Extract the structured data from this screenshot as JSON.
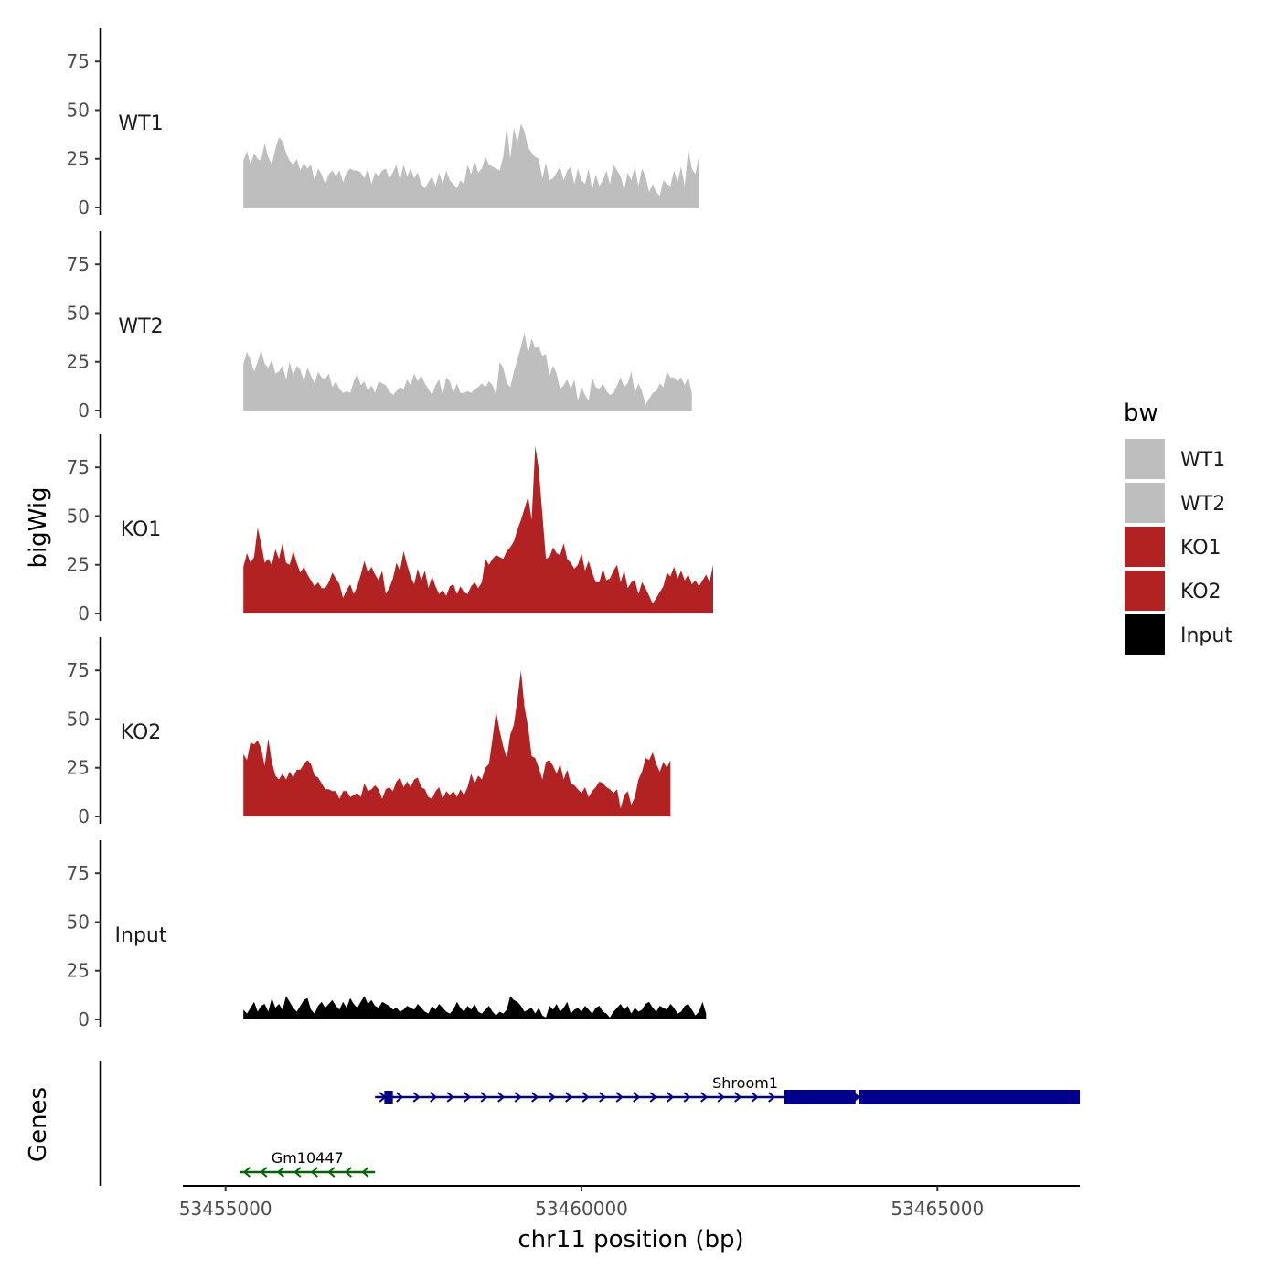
{
  "chart_data": {
    "type": "area",
    "ylabel": "bigWig",
    "genes_ylabel": "Genes",
    "xlabel": "chr11 position (bp)",
    "chromosome": "chr11",
    "xlim": [
      53454400,
      53467000
    ],
    "ylim": [
      0,
      92
    ],
    "x_ticks": [
      53455000,
      53460000,
      53465000
    ],
    "x_tick_labels": [
      "53455000",
      "53460000",
      "53465000"
    ],
    "y_ticks": [
      0,
      25,
      50,
      75
    ],
    "y_tick_labels": [
      "0",
      "25",
      "50",
      "75"
    ],
    "x_start": 53455250,
    "x_step": 50,
    "series": [
      {
        "name": "WT1",
        "color": "#bebebe",
        "values": [
          24,
          29,
          22,
          28,
          25,
          24,
          33,
          26,
          22,
          30,
          36,
          34,
          28,
          24,
          22,
          25,
          19,
          23,
          20,
          22,
          14,
          20,
          17,
          12,
          17,
          19,
          16,
          19,
          13,
          18,
          20,
          19,
          19,
          18,
          15,
          20,
          12,
          18,
          16,
          19,
          20,
          15,
          18,
          22,
          14,
          22,
          16,
          20,
          15,
          18,
          12,
          10,
          13,
          16,
          11,
          18,
          12,
          19,
          14,
          12,
          10,
          14,
          12,
          22,
          17,
          24,
          18,
          20,
          26,
          22,
          21,
          20,
          19,
          26,
          42,
          25,
          41,
          33,
          43,
          39,
          31,
          28,
          26,
          25,
          15,
          23,
          14,
          15,
          18,
          21,
          14,
          19,
          21,
          12,
          20,
          14,
          12,
          20,
          9,
          17,
          11,
          14,
          19,
          12,
          22,
          19,
          16,
          9,
          18,
          14,
          21,
          11,
          20,
          16,
          8,
          12,
          8,
          6,
          14,
          12,
          11,
          19,
          13,
          21,
          11,
          30,
          20,
          17,
          27
        ]
      },
      {
        "name": "WT2",
        "color": "#bebebe",
        "values": [
          24,
          30,
          26,
          20,
          25,
          31,
          24,
          22,
          26,
          19,
          20,
          23,
          16,
          25,
          18,
          23,
          21,
          15,
          22,
          18,
          14,
          20,
          17,
          16,
          19,
          12,
          15,
          11,
          9,
          10,
          9,
          15,
          19,
          13,
          15,
          10,
          13,
          9,
          15,
          14,
          13,
          10,
          8,
          10,
          12,
          11,
          16,
          13,
          19,
          15,
          18,
          14,
          11,
          8,
          13,
          16,
          8,
          17,
          15,
          9,
          14,
          9,
          9,
          10,
          9,
          11,
          12,
          14,
          12,
          15,
          13,
          8,
          25,
          22,
          14,
          12,
          20,
          26,
          33,
          40,
          29,
          37,
          32,
          33,
          28,
          29,
          18,
          23,
          19,
          11,
          13,
          16,
          11,
          16,
          5,
          12,
          8,
          5,
          17,
          12,
          11,
          14,
          10,
          8,
          9,
          13,
          17,
          12,
          14,
          20,
          9,
          14,
          10,
          3,
          6,
          9,
          10,
          14,
          12,
          20,
          17,
          17,
          15,
          17,
          13,
          17,
          9
        ]
      },
      {
        "name": "KO1",
        "color": "#b22222",
        "values": [
          24,
          31,
          26,
          29,
          44,
          36,
          26,
          28,
          25,
          33,
          28,
          36,
          26,
          25,
          32,
          26,
          21,
          24,
          20,
          17,
          14,
          16,
          13,
          13,
          16,
          21,
          18,
          15,
          8,
          12,
          15,
          10,
          14,
          20,
          27,
          21,
          24,
          20,
          17,
          22,
          10,
          13,
          18,
          26,
          22,
          32,
          25,
          19,
          15,
          23,
          17,
          22,
          13,
          19,
          14,
          10,
          12,
          9,
          14,
          15,
          10,
          14,
          11,
          10,
          14,
          16,
          13,
          16,
          28,
          25,
          28,
          30,
          29,
          28,
          32,
          34,
          37,
          43,
          48,
          54,
          60,
          48,
          86,
          74,
          51,
          28,
          29,
          34,
          31,
          30,
          36,
          28,
          26,
          23,
          25,
          31,
          22,
          27,
          21,
          16,
          16,
          23,
          17,
          18,
          22,
          25,
          16,
          22,
          13,
          16,
          17,
          10,
          16,
          13,
          9,
          5,
          8,
          11,
          14,
          21,
          19,
          24,
          18,
          22,
          17,
          20,
          15,
          17,
          14,
          17,
          20,
          16,
          25
        ]
      },
      {
        "name": "KO2",
        "color": "#b22222",
        "values": [
          32,
          29,
          38,
          37,
          39,
          35,
          26,
          40,
          28,
          21,
          19,
          22,
          19,
          23,
          20,
          24,
          24,
          27,
          29,
          27,
          21,
          20,
          17,
          14,
          14,
          13,
          13,
          9,
          13,
          13,
          10,
          11,
          12,
          10,
          17,
          13,
          14,
          16,
          14,
          9,
          14,
          15,
          13,
          18,
          20,
          15,
          18,
          15,
          19,
          20,
          15,
          14,
          10,
          9,
          13,
          15,
          9,
          13,
          11,
          13,
          10,
          14,
          11,
          15,
          22,
          17,
          21,
          19,
          25,
          27,
          40,
          54,
          44,
          36,
          30,
          42,
          47,
          60,
          75,
          56,
          46,
          31,
          30,
          25,
          19,
          28,
          29,
          26,
          22,
          27,
          19,
          24,
          17,
          16,
          14,
          12,
          15,
          10,
          13,
          15,
          18,
          17,
          15,
          14,
          12,
          14,
          4,
          11,
          13,
          6,
          10,
          19,
          23,
          30,
          29,
          33,
          27,
          23,
          28,
          25,
          29
        ]
      },
      {
        "name": "Input",
        "color": "#000000",
        "values": [
          5,
          3,
          6,
          9,
          4,
          7,
          8,
          4,
          11,
          6,
          8,
          5,
          12,
          9,
          6,
          4,
          7,
          10,
          11,
          5,
          3,
          7,
          9,
          6,
          8,
          10,
          7,
          5,
          9,
          6,
          11,
          8,
          6,
          9,
          12,
          8,
          10,
          7,
          6,
          9,
          8,
          7,
          5,
          6,
          4,
          5,
          7,
          6,
          5,
          8,
          6,
          4,
          3,
          7,
          5,
          8,
          6,
          4,
          3,
          5,
          9,
          6,
          4,
          7,
          5,
          8,
          4,
          3,
          5,
          7,
          4,
          2,
          4,
          3,
          5,
          12,
          10,
          9,
          7,
          4,
          5,
          6,
          3,
          6,
          2,
          1,
          7,
          5,
          8,
          4,
          6,
          9,
          3,
          5,
          6,
          4,
          7,
          5,
          3,
          6,
          7,
          4,
          3,
          1,
          4,
          6,
          8,
          5,
          7,
          3,
          6,
          4,
          5,
          8,
          9,
          6,
          4,
          7,
          6,
          5,
          8,
          6,
          3,
          4,
          7,
          8,
          5,
          2,
          4,
          9,
          3
        ]
      }
    ],
    "genes": [
      {
        "name": "Gm10447",
        "strand": "-",
        "color": "#006400",
        "start": 53455200,
        "end": 53457100,
        "exons": [],
        "row": 2
      },
      {
        "name": "Shroom1",
        "strand": "+",
        "color": "#00008b",
        "start": 53457100,
        "end": 53467000,
        "exons": [
          [
            53457230,
            53457350
          ],
          [
            53462850,
            53463850
          ],
          [
            53463900,
            53467000
          ]
        ],
        "row": 1
      }
    ],
    "legend": {
      "title": "bw",
      "position": "right",
      "entries": [
        {
          "label": "WT1",
          "color": "#bebebe"
        },
        {
          "label": "WT2",
          "color": "#bebebe"
        },
        {
          "label": "KO1",
          "color": "#b22222"
        },
        {
          "label": "KO2",
          "color": "#b22222"
        },
        {
          "label": "Input",
          "color": "#000000"
        }
      ]
    }
  }
}
